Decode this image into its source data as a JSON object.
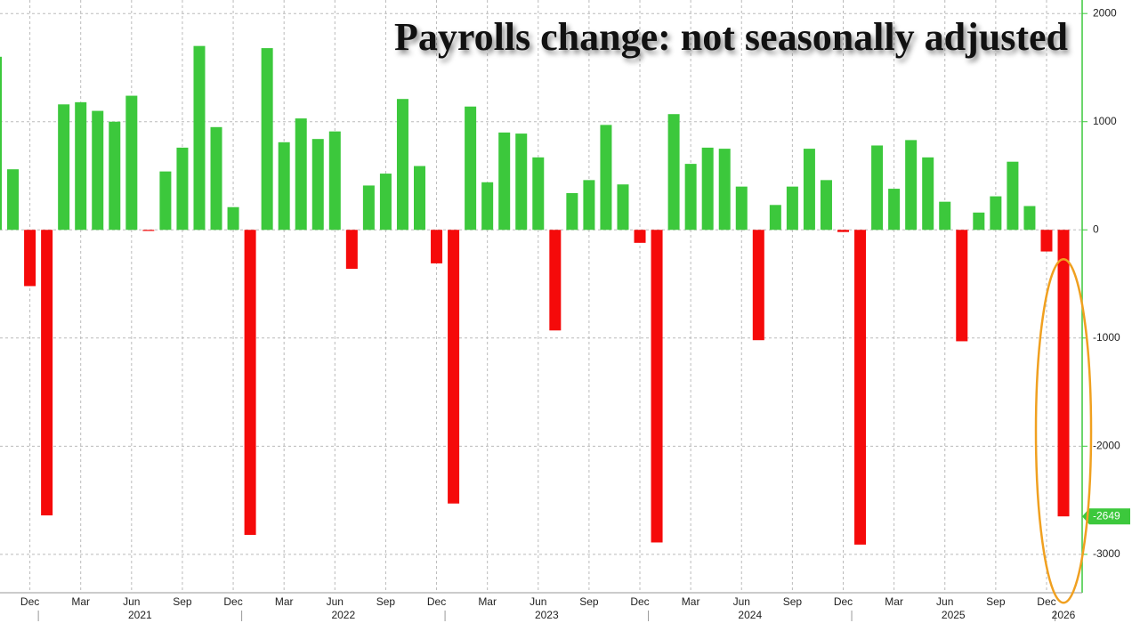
{
  "chart_data": {
    "type": "bar",
    "title": "Payrolls change: not seasonally adjusted",
    "categories": [
      null,
      null,
      "Dec",
      null,
      null,
      "Mar",
      null,
      null,
      "Jun",
      null,
      null,
      "Sep",
      null,
      null,
      "Dec",
      null,
      null,
      "Mar",
      null,
      null,
      "Jun",
      null,
      null,
      "Sep",
      null,
      null,
      "Dec",
      null,
      null,
      "Mar",
      null,
      null,
      "Jun",
      null,
      null,
      "Sep",
      null,
      null,
      "Dec",
      null,
      null,
      "Mar",
      null,
      null,
      "Jun",
      null,
      null,
      "Sep",
      null,
      null,
      "Dec",
      null,
      null,
      "Mar",
      null,
      null,
      "Jun",
      null,
      null,
      "Sep",
      null,
      null,
      "Dec",
      null
    ],
    "years": [
      "2021",
      "2022",
      "2023",
      "2024",
      "2025",
      "2026"
    ],
    "values": [
      1600,
      560,
      -520,
      -2640,
      1160,
      1180,
      1100,
      1000,
      1240,
      -10,
      540,
      760,
      1700,
      950,
      210,
      -2820,
      1680,
      810,
      1030,
      840,
      910,
      -360,
      410,
      520,
      1210,
      590,
      -310,
      -2530,
      1140,
      440,
      900,
      890,
      670,
      -930,
      340,
      460,
      970,
      420,
      -120,
      -2890,
      1070,
      610,
      760,
      750,
      400,
      -1020,
      230,
      400,
      750,
      460,
      -20,
      -2910,
      780,
      380,
      830,
      670,
      260,
      -1030,
      160,
      310,
      630,
      220,
      -200,
      -2649
    ],
    "positive_color": "#3cc83c",
    "negative_color": "#f50a0a",
    "ylim": [
      -3355,
      2125
    ],
    "yticks": [
      -3000,
      -2000,
      -1000,
      0,
      1000,
      2000
    ],
    "grid": true
  }
}
